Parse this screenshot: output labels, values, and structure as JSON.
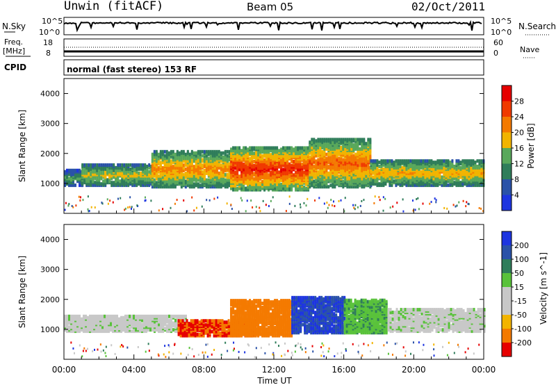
{
  "header": {
    "station": "Unwin (fitACF)",
    "beam": "Beam 05",
    "date": "02/Oct/2011"
  },
  "panels": {
    "nsky_label": "N.Sky",
    "nsearch_label": "N.Search",
    "nsky_ticks": [
      "10^5",
      "10^0"
    ],
    "nsearch_ticks": [
      "10^5",
      "10^0"
    ],
    "freq_label_1": "Freq.",
    "freq_label_2": "[MHz]",
    "freq_ticks": [
      "18",
      "8"
    ],
    "nave_label": "Nave",
    "nave_ticks": [
      "60",
      "0"
    ],
    "cpid_label": "CPID",
    "cpid_text": "normal (fast stereo) 153 RF"
  },
  "chart_data": [
    {
      "type": "heatmap",
      "title": "",
      "xlabel": "",
      "ylabel": "Slant Range [km]",
      "xlim": [
        "00:00",
        "24:00"
      ],
      "ylim": [
        0,
        4500
      ],
      "yticks": [
        "1000",
        "2000",
        "3000",
        "4000"
      ],
      "colorbar": {
        "label": "Power [dB]",
        "ticks": [
          "4",
          "8",
          "12",
          "16",
          "20",
          "24",
          "28"
        ],
        "colors": [
          "#1d35e0",
          "#2a52a8",
          "#2f7d5a",
          "#59a85b",
          "#f2b400",
          "#f47a00",
          "#f03a00",
          "#e60000"
        ]
      },
      "scatter_bands": [
        {
          "t": [
            0.0,
            1.0
          ],
          "lo": 950,
          "hi": 1450,
          "level": 12
        },
        {
          "t": [
            1.0,
            5.0
          ],
          "lo": 950,
          "hi": 1650,
          "level": 16
        },
        {
          "t": [
            5.0,
            9.5
          ],
          "lo": 900,
          "hi": 2100,
          "level": 20
        },
        {
          "t": [
            9.5,
            14.0
          ],
          "lo": 800,
          "hi": 2200,
          "level": 26
        },
        {
          "t": [
            14.0,
            17.5
          ],
          "lo": 900,
          "hi": 2500,
          "level": 22
        },
        {
          "t": [
            17.5,
            24.0
          ],
          "lo": 950,
          "hi": 1800,
          "level": 18
        }
      ]
    },
    {
      "type": "heatmap",
      "title": "",
      "xlabel": "Time UT",
      "ylabel": "Slant Range [km]",
      "xlim": [
        "00:00",
        "24:00"
      ],
      "ylim": [
        0,
        4500
      ],
      "xticks": [
        "00:00",
        "04:00",
        "08:00",
        "12:00",
        "16:00",
        "20:00",
        "00:00"
      ],
      "yticks": [
        "1000",
        "2000",
        "3000",
        "4000"
      ],
      "colorbar": {
        "label": "Velocity [m s^-1]",
        "ticks": [
          "200",
          "100",
          "50",
          "15",
          "-15",
          "-50",
          "-100",
          "-200"
        ],
        "colors": [
          "#1d35e0",
          "#2a52a8",
          "#2f7d5a",
          "#59c23a",
          "#c8c8c8",
          "#c8c8c8",
          "#f2b400",
          "#f47a00",
          "#e60000"
        ]
      },
      "scatter_bands": [
        {
          "t": [
            0.0,
            7.0
          ],
          "lo": 950,
          "hi": 1450,
          "v": 0
        },
        {
          "t": [
            6.5,
            11.0
          ],
          "lo": 800,
          "hi": 1300,
          "v": -200
        },
        {
          "t": [
            9.5,
            13.0
          ],
          "lo": 800,
          "hi": 2000,
          "v": -180
        },
        {
          "t": [
            13.0,
            16.0
          ],
          "lo": 900,
          "hi": 2100,
          "v": 200
        },
        {
          "t": [
            16.0,
            18.5
          ],
          "lo": 900,
          "hi": 2000,
          "v": 40
        },
        {
          "t": [
            18.5,
            24.0
          ],
          "lo": 950,
          "hi": 1700,
          "v": 0
        }
      ]
    }
  ]
}
